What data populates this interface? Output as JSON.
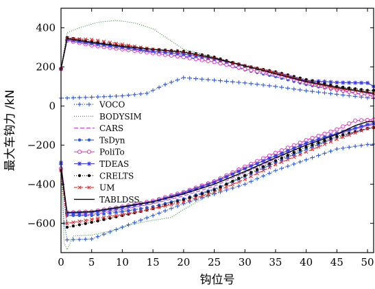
{
  "chart_data": {
    "type": "line",
    "xlabel": "钩位号",
    "ylabel": "最大车钩力 /kN",
    "xlim": [
      0,
      51
    ],
    "ylim": [
      -750,
      500
    ],
    "xticks": [
      0,
      5,
      10,
      15,
      20,
      25,
      30,
      35,
      40,
      45,
      50
    ],
    "yticks": [
      -600,
      -400,
      -200,
      0,
      200,
      400
    ],
    "grid": false,
    "legend": "left",
    "series": [
      {
        "name": "VOCO",
        "color": "#2e5be0",
        "dash": "1,2",
        "width": 1.4,
        "marker": "plus",
        "upper": [
          [
            0,
            40
          ],
          [
            5,
            45
          ],
          [
            10,
            52
          ],
          [
            14,
            65
          ],
          [
            17,
            110
          ],
          [
            20,
            145
          ],
          [
            25,
            132
          ],
          [
            30,
            118
          ],
          [
            35,
            100
          ],
          [
            40,
            78
          ],
          [
            45,
            60
          ],
          [
            50,
            42
          ],
          [
            51,
            38
          ]
        ],
        "lower": [
          [
            0,
            -300
          ],
          [
            0.5,
            -600
          ],
          [
            1,
            -685
          ],
          [
            5,
            -680
          ],
          [
            10,
            -620
          ],
          [
            15,
            -560
          ],
          [
            20,
            -500
          ],
          [
            25,
            -450
          ],
          [
            30,
            -400
          ],
          [
            35,
            -330
          ],
          [
            40,
            -275
          ],
          [
            45,
            -220
          ],
          [
            50,
            -197
          ],
          [
            51,
            -195
          ]
        ]
      },
      {
        "name": "BODYSIM",
        "color": "#2e8b2e",
        "dash": "1,2",
        "width": 1.1,
        "marker": "none",
        "upper": [
          [
            0,
            200
          ],
          [
            1,
            375
          ],
          [
            3,
            400
          ],
          [
            6,
            428
          ],
          [
            9,
            438
          ],
          [
            12,
            425
          ],
          [
            15,
            395
          ],
          [
            20,
            290
          ],
          [
            25,
            250
          ],
          [
            30,
            200
          ],
          [
            35,
            165
          ],
          [
            40,
            120
          ],
          [
            45,
            95
          ],
          [
            50,
            75
          ],
          [
            51,
            75
          ]
        ],
        "lower": [
          [
            0,
            -310
          ],
          [
            0.5,
            -700
          ],
          [
            1,
            -735
          ],
          [
            2,
            -665
          ],
          [
            5,
            -660
          ],
          [
            8,
            -640
          ],
          [
            11,
            -610
          ],
          [
            14,
            -590
          ],
          [
            16,
            -580
          ],
          [
            18,
            -570
          ],
          [
            20,
            -530
          ],
          [
            25,
            -440
          ],
          [
            30,
            -340
          ],
          [
            35,
            -280
          ],
          [
            40,
            -225
          ],
          [
            45,
            -160
          ],
          [
            50,
            -120
          ],
          [
            51,
            -110
          ]
        ]
      },
      {
        "name": "CARS",
        "color": "#c040e0",
        "dash": "6,3",
        "width": 1.1,
        "marker": "none",
        "upper": [
          [
            0,
            190
          ],
          [
            1,
            355
          ],
          [
            5,
            330
          ],
          [
            10,
            305
          ],
          [
            15,
            285
          ],
          [
            20,
            270
          ],
          [
            25,
            240
          ],
          [
            30,
            210
          ],
          [
            35,
            175
          ],
          [
            40,
            130
          ],
          [
            45,
            95
          ],
          [
            50,
            65
          ],
          [
            51,
            60
          ]
        ],
        "lower": [
          [
            0,
            -320
          ],
          [
            1,
            -560
          ],
          [
            5,
            -555
          ],
          [
            10,
            -530
          ],
          [
            15,
            -500
          ],
          [
            20,
            -460
          ],
          [
            25,
            -410
          ],
          [
            30,
            -340
          ],
          [
            35,
            -270
          ],
          [
            40,
            -200
          ],
          [
            45,
            -145
          ],
          [
            50,
            -100
          ],
          [
            51,
            -95
          ]
        ]
      },
      {
        "name": "TsDyn",
        "color": "#2e5be0",
        "dash": "5,3",
        "width": 1.1,
        "marker": "circle",
        "upper": [
          [
            0,
            190
          ],
          [
            1,
            335
          ],
          [
            5,
            320
          ],
          [
            10,
            300
          ],
          [
            15,
            275
          ],
          [
            20,
            255
          ],
          [
            25,
            225
          ],
          [
            30,
            185
          ],
          [
            35,
            150
          ],
          [
            40,
            110
          ],
          [
            45,
            80
          ],
          [
            50,
            55
          ],
          [
            51,
            50
          ]
        ],
        "lower": [
          [
            0,
            -320
          ],
          [
            1,
            -560
          ],
          [
            5,
            -560
          ],
          [
            10,
            -540
          ],
          [
            15,
            -515
          ],
          [
            20,
            -475
          ],
          [
            25,
            -425
          ],
          [
            30,
            -360
          ],
          [
            35,
            -290
          ],
          [
            40,
            -220
          ],
          [
            45,
            -160
          ],
          [
            50,
            -115
          ],
          [
            51,
            -110
          ]
        ]
      },
      {
        "name": "PoliTo",
        "color": "#e33fc0",
        "dash": "",
        "width": 1.1,
        "marker": "circle-open",
        "upper": [
          [
            0,
            190
          ],
          [
            1,
            335
          ],
          [
            5,
            310
          ],
          [
            10,
            290
          ],
          [
            15,
            270
          ],
          [
            20,
            250
          ],
          [
            25,
            225
          ],
          [
            30,
            190
          ],
          [
            35,
            160
          ],
          [
            40,
            120
          ],
          [
            45,
            85
          ],
          [
            50,
            55
          ],
          [
            51,
            50
          ]
        ],
        "lower": [
          [
            0,
            -320
          ],
          [
            1,
            -545
          ],
          [
            5,
            -540
          ],
          [
            10,
            -515
          ],
          [
            15,
            -485
          ],
          [
            20,
            -440
          ],
          [
            25,
            -385
          ],
          [
            30,
            -310
          ],
          [
            35,
            -240
          ],
          [
            40,
            -175
          ],
          [
            45,
            -120
          ],
          [
            48,
            -75
          ],
          [
            51,
            -70
          ]
        ]
      },
      {
        "name": "TDEAS",
        "color": "#3a3ae6",
        "dash": "",
        "width": 1.1,
        "marker": "star",
        "upper": [
          [
            0,
            190
          ],
          [
            1,
            340
          ],
          [
            5,
            320
          ],
          [
            10,
            300
          ],
          [
            15,
            280
          ],
          [
            20,
            265
          ],
          [
            25,
            240
          ],
          [
            30,
            205
          ],
          [
            35,
            170
          ],
          [
            40,
            130
          ],
          [
            43,
            125
          ],
          [
            45,
            120
          ],
          [
            50,
            118
          ],
          [
            51,
            100
          ]
        ],
        "lower": [
          [
            0,
            -290
          ],
          [
            1,
            -550
          ],
          [
            5,
            -545
          ],
          [
            10,
            -520
          ],
          [
            15,
            -490
          ],
          [
            20,
            -445
          ],
          [
            25,
            -390
          ],
          [
            30,
            -320
          ],
          [
            35,
            -255
          ],
          [
            40,
            -190
          ],
          [
            45,
            -140
          ],
          [
            50,
            -95
          ],
          [
            51,
            -90
          ]
        ]
      },
      {
        "name": "CRELTS",
        "color": "#111111",
        "dash": "1,2",
        "width": 1.2,
        "marker": "dot",
        "upper": [
          [
            0,
            190
          ],
          [
            1,
            350
          ],
          [
            5,
            330
          ],
          [
            10,
            310
          ],
          [
            15,
            290
          ],
          [
            20,
            280
          ],
          [
            25,
            250
          ],
          [
            30,
            205
          ],
          [
            35,
            175
          ],
          [
            40,
            135
          ],
          [
            45,
            100
          ],
          [
            50,
            80
          ],
          [
            51,
            80
          ]
        ],
        "lower": [
          [
            0,
            -330
          ],
          [
            1,
            -620
          ],
          [
            5,
            -595
          ],
          [
            10,
            -560
          ],
          [
            15,
            -525
          ],
          [
            20,
            -480
          ],
          [
            25,
            -430
          ],
          [
            30,
            -355
          ],
          [
            35,
            -280
          ],
          [
            40,
            -210
          ],
          [
            45,
            -155
          ],
          [
            50,
            -115
          ],
          [
            51,
            -110
          ]
        ]
      },
      {
        "name": "UM",
        "color": "#e03030",
        "dash": "5,3",
        "width": 1.1,
        "marker": "x",
        "upper": [
          [
            0,
            190
          ],
          [
            1,
            345
          ],
          [
            5,
            340
          ],
          [
            10,
            315
          ],
          [
            15,
            290
          ],
          [
            20,
            275
          ],
          [
            25,
            245
          ],
          [
            30,
            205
          ],
          [
            35,
            170
          ],
          [
            40,
            125
          ],
          [
            45,
            90
          ],
          [
            50,
            70
          ],
          [
            51,
            65
          ]
        ],
        "lower": [
          [
            0,
            -330
          ],
          [
            1,
            -600
          ],
          [
            5,
            -580
          ],
          [
            10,
            -555
          ],
          [
            15,
            -525
          ],
          [
            20,
            -490
          ],
          [
            25,
            -440
          ],
          [
            30,
            -375
          ],
          [
            35,
            -300
          ],
          [
            40,
            -235
          ],
          [
            45,
            -170
          ],
          [
            50,
            -115
          ],
          [
            51,
            -110
          ]
        ]
      },
      {
        "name": "TABLDSS",
        "color": "#000000",
        "dash": "",
        "width": 1.4,
        "marker": "none",
        "upper": [
          [
            0,
            190
          ],
          [
            1,
            345
          ],
          [
            5,
            325
          ],
          [
            10,
            305
          ],
          [
            15,
            290
          ],
          [
            20,
            275
          ],
          [
            25,
            245
          ],
          [
            30,
            205
          ],
          [
            35,
            165
          ],
          [
            40,
            125
          ],
          [
            45,
            95
          ],
          [
            50,
            70
          ],
          [
            51,
            65
          ]
        ],
        "lower": [
          [
            0,
            -320
          ],
          [
            1,
            -545
          ],
          [
            5,
            -540
          ],
          [
            10,
            -515
          ],
          [
            15,
            -490
          ],
          [
            20,
            -450
          ],
          [
            25,
            -400
          ],
          [
            30,
            -335
          ],
          [
            35,
            -265
          ],
          [
            40,
            -200
          ],
          [
            45,
            -145
          ],
          [
            48,
            -100
          ],
          [
            50,
            -80
          ],
          [
            51,
            -80
          ]
        ]
      }
    ]
  }
}
